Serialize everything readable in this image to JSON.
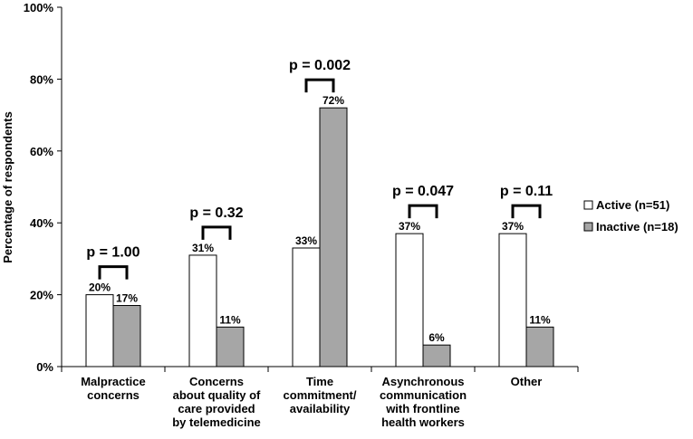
{
  "chart_data": {
    "type": "bar",
    "title": "",
    "xlabel": "",
    "ylabel": "Percentage of respondents",
    "ylim": [
      0,
      100
    ],
    "yticks": [
      "0%",
      "20%",
      "40%",
      "60%",
      "80%",
      "100%"
    ],
    "categories": [
      [
        "Malpractice",
        "concerns"
      ],
      [
        "Concerns",
        "about quality of",
        "care provided",
        "by telemedicine"
      ],
      [
        "Time",
        "commitment/",
        "availability"
      ],
      [
        "Asynchronous",
        "communication",
        "with frontline",
        "health workers"
      ],
      [
        "Other"
      ]
    ],
    "series": [
      {
        "name": "Active (n=51)",
        "values": [
          20,
          31,
          33,
          37,
          37
        ],
        "labels": [
          "20%",
          "31%",
          "33%",
          "37%",
          "37%"
        ],
        "color": "#ffffff"
      },
      {
        "name": "Inactive (n=18)",
        "values": [
          17,
          11,
          72,
          6,
          11
        ],
        "labels": [
          "17%",
          "11%",
          "72%",
          "6%",
          "11%"
        ],
        "color": "#a6a6a6"
      }
    ],
    "p_values": [
      "p = 1.00",
      "p = 0.32",
      "p = 0.002",
      "p = 0.047",
      "p = 0.11"
    ],
    "grid": false,
    "legend_position": "right"
  }
}
